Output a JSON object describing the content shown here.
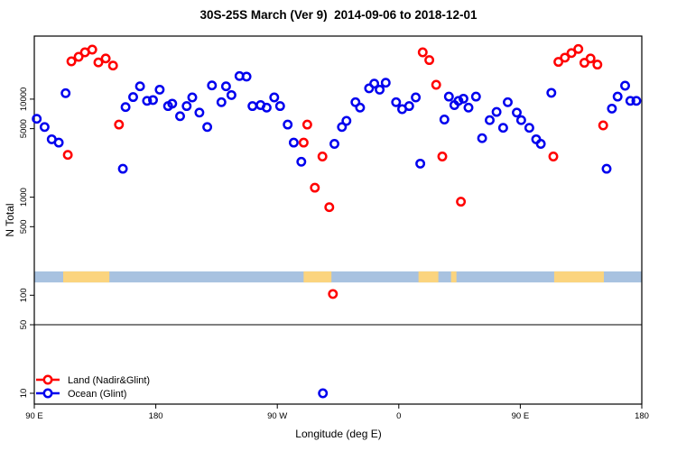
{
  "chart_data": {
    "type": "scatter",
    "title": "30S-25S March (Ver 9)  2014-09-06 to 2018-12-01",
    "xlabel": "Longitude (deg E)",
    "ylabel": "N Total",
    "grid": false,
    "x_axis": {
      "description": "longitude wrapping eastward from 90E across 450 degrees",
      "range_deg": [
        90,
        540
      ],
      "tick_values": [
        90,
        180,
        270,
        360,
        450,
        540
      ],
      "tick_labels": [
        "90 E",
        "180",
        "90 W",
        "0",
        "90 E",
        "180"
      ]
    },
    "y_axis": {
      "scale": "log",
      "range": [
        7.8,
        44000
      ],
      "tick_values": [
        10,
        50,
        100,
        500,
        1000,
        5000,
        10000
      ],
      "tick_labels": [
        "10",
        "50",
        "100",
        "500",
        "1000",
        "5000",
        "10000"
      ]
    },
    "reference_line_y": 50,
    "surface_band": {
      "description": "land/ocean strip drawn across plot",
      "y_value_range": [
        135,
        175
      ],
      "ocean_color": "#a8c2e0",
      "land_color": "#fbd47e",
      "land_segments_deg": [
        [
          111.4,
          145.6
        ],
        [
          289.5,
          310.1
        ],
        [
          374.6,
          389.3
        ],
        [
          398.7,
          402.7
        ],
        [
          475.1,
          511.9
        ]
      ]
    },
    "legend": {
      "position": "bottom-left",
      "entries": [
        "Land (Nadir&Glint)",
        "Ocean (Glint)"
      ]
    },
    "series": [
      {
        "name": "Land (Nadir&Glint)",
        "color": "#ff0000",
        "marker": "open-circle",
        "points": [
          [
            114.8,
            2700
          ],
          [
            117.5,
            24300
          ],
          [
            122.8,
            27000
          ],
          [
            127.5,
            30000
          ],
          [
            132.9,
            32000
          ],
          [
            137.5,
            23700
          ],
          [
            142.9,
            26000
          ],
          [
            148.3,
            22000
          ],
          [
            152.7,
            5500
          ],
          [
            289.5,
            3600
          ],
          [
            292.2,
            5500
          ],
          [
            297.8,
            1250
          ],
          [
            303.4,
            2600
          ],
          [
            308.5,
            790
          ],
          [
            311.2,
            103
          ],
          [
            377.7,
            30000
          ],
          [
            382.6,
            25000
          ],
          [
            387.7,
            14000
          ],
          [
            392.2,
            2600
          ],
          [
            406.0,
            900
          ],
          [
            474.5,
            2600
          ],
          [
            478.2,
            24000
          ],
          [
            483.0,
            26500
          ],
          [
            487.9,
            29500
          ],
          [
            493.0,
            32500
          ],
          [
            497.5,
            23500
          ],
          [
            502.0,
            26000
          ],
          [
            507.1,
            22500
          ],
          [
            511.4,
            5400
          ]
        ]
      },
      {
        "name": "Ocean (Glint)",
        "color": "#0000ee",
        "marker": "open-circle",
        "points": [
          [
            91.8,
            6300
          ],
          [
            97.6,
            5200
          ],
          [
            102.9,
            3900
          ],
          [
            108.1,
            3600
          ],
          [
            113.2,
            11500
          ],
          [
            155.6,
            1950
          ],
          [
            157.6,
            8300
          ],
          [
            163.2,
            10500
          ],
          [
            168.3,
            13500
          ],
          [
            173.5,
            9600
          ],
          [
            177.9,
            9800
          ],
          [
            182.9,
            12500
          ],
          [
            189.1,
            8500
          ],
          [
            192.2,
            9000
          ],
          [
            198.0,
            6700
          ],
          [
            202.9,
            8500
          ],
          [
            207.0,
            10400
          ],
          [
            212.3,
            7300
          ],
          [
            218.1,
            5200
          ],
          [
            221.6,
            13800
          ],
          [
            228.6,
            9300
          ],
          [
            232.0,
            13500
          ],
          [
            236.0,
            11000
          ],
          [
            242.0,
            17200
          ],
          [
            247.2,
            17000
          ],
          [
            251.6,
            8500
          ],
          [
            257.6,
            8700
          ],
          [
            262.1,
            8200
          ],
          [
            267.7,
            10400
          ],
          [
            272.1,
            8500
          ],
          [
            277.7,
            5500
          ],
          [
            282.2,
            3600
          ],
          [
            287.8,
            2300
          ],
          [
            303.8,
            10
          ],
          [
            312.3,
            3500
          ],
          [
            317.9,
            5200
          ],
          [
            321.2,
            6000
          ],
          [
            327.9,
            9300
          ],
          [
            331.3,
            8200
          ],
          [
            338.0,
            12900
          ],
          [
            341.8,
            14400
          ],
          [
            345.8,
            12500
          ],
          [
            350.3,
            14700
          ],
          [
            358.0,
            9300
          ],
          [
            362.5,
            7900
          ],
          [
            367.7,
            8500
          ],
          [
            372.6,
            10400
          ],
          [
            375.9,
            2200
          ],
          [
            393.8,
            6200
          ],
          [
            397.1,
            10600
          ],
          [
            401.2,
            8700
          ],
          [
            404.2,
            9600
          ],
          [
            407.9,
            10100
          ],
          [
            411.6,
            8200
          ],
          [
            417.2,
            10600
          ],
          [
            421.7,
            4000
          ],
          [
            427.3,
            6100
          ],
          [
            432.4,
            7400
          ],
          [
            437.3,
            5100
          ],
          [
            440.7,
            9300
          ],
          [
            447.4,
            7300
          ],
          [
            450.7,
            6100
          ],
          [
            456.7,
            5100
          ],
          [
            461.8,
            3900
          ],
          [
            465.2,
            3500
          ],
          [
            473.0,
            11600
          ],
          [
            513.9,
            1950
          ],
          [
            517.9,
            8000
          ],
          [
            522.1,
            10600
          ],
          [
            527.6,
            13700
          ],
          [
            531.5,
            9600
          ],
          [
            536.0,
            9600
          ]
        ]
      }
    ]
  }
}
